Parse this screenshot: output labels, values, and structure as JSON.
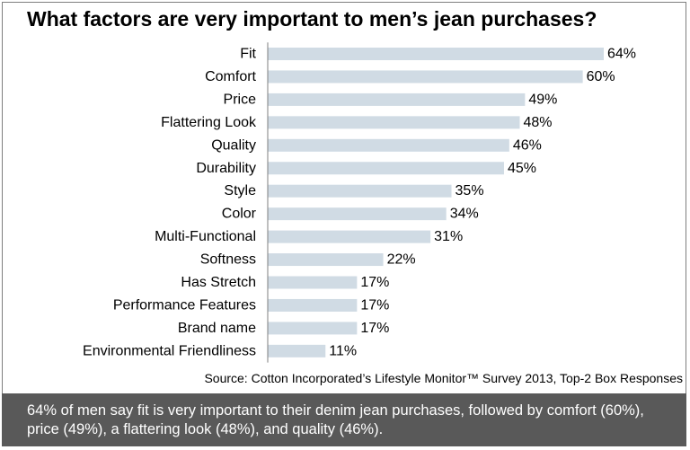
{
  "title": "What factors are very important to men’s jean purchases?",
  "source": "Source: Cotton Incorporated’s Lifestyle Monitor™ Survey 2013, Top-2 Box Responses",
  "caption": "64% of men say fit is very  important to their denim jean purchases, followed by comfort (60%), price (49%), a flattering look (48%), and quality (46%).",
  "colors": {
    "bar": "#d0dbe4",
    "caption_bg": "#595959",
    "axis": "#7f7f7f"
  },
  "chart_data": {
    "type": "bar",
    "orientation": "horizontal",
    "categories": [
      "Fit",
      "Comfort",
      "Price",
      "Flattering Look",
      "Quality",
      "Durability",
      "Style",
      "Color",
      "Multi-Functional",
      "Softness",
      "Has Stretch",
      "Performance Features",
      "Brand name",
      "Environmental Friendliness"
    ],
    "values": [
      64,
      60,
      49,
      48,
      46,
      45,
      35,
      34,
      31,
      22,
      17,
      17,
      17,
      11
    ],
    "labels": [
      "64%",
      "60%",
      "49%",
      "48%",
      "46%",
      "45%",
      "35%",
      "34%",
      "31%",
      "22%",
      "17%",
      "17%",
      "17%",
      "11%"
    ],
    "xlim": [
      0,
      64
    ],
    "grid": false,
    "legend": "none"
  }
}
